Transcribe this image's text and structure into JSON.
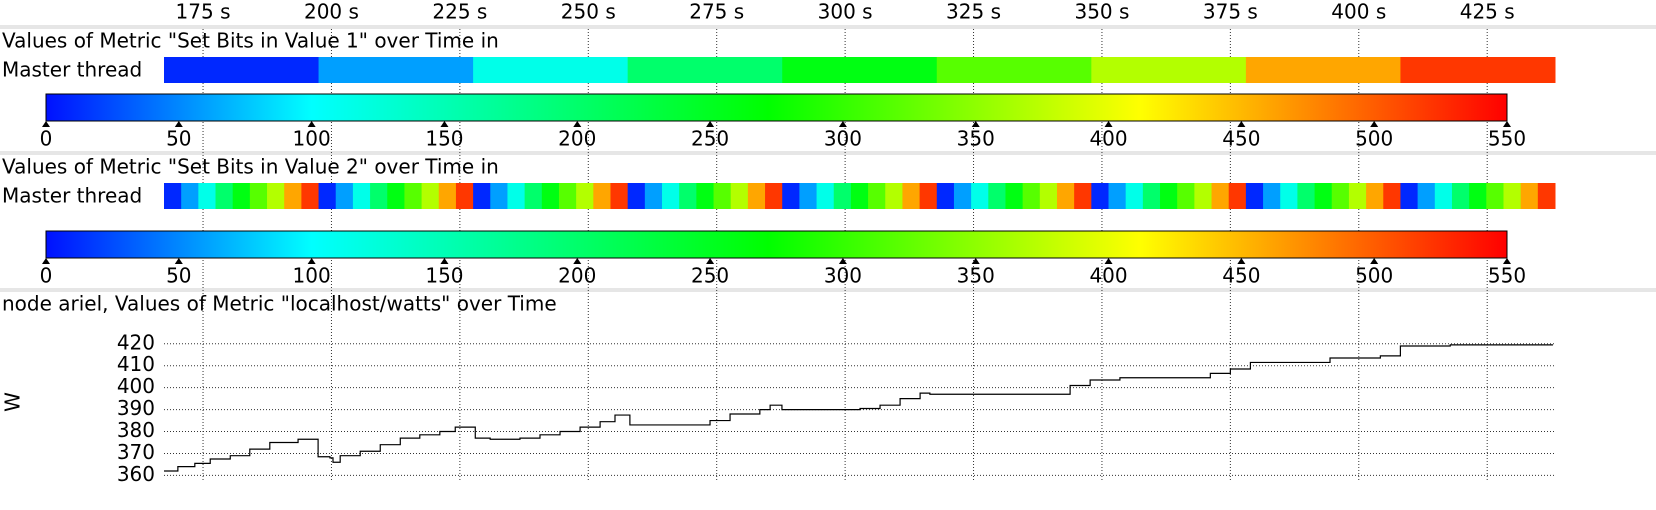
{
  "time_axis": {
    "xlim": [
      167.4,
      438.2
    ],
    "xticks": [
      {
        "value": 175,
        "label": "175 s"
      },
      {
        "value": 200,
        "label": "200 s"
      },
      {
        "value": 225,
        "label": "225 s"
      },
      {
        "value": 250,
        "label": "250 s"
      },
      {
        "value": 275,
        "label": "275 s"
      },
      {
        "value": 300,
        "label": "300 s"
      },
      {
        "value": 325,
        "label": "325 s"
      },
      {
        "value": 350,
        "label": "350 s"
      },
      {
        "value": 375,
        "label": "375 s"
      },
      {
        "value": 400,
        "label": "400 s"
      },
      {
        "value": 425,
        "label": "425 s"
      }
    ]
  },
  "colormap": [
    {
      "value": 0,
      "color": "#0010ff"
    },
    {
      "value": 100,
      "color": "#00ffff"
    },
    {
      "value": 272,
      "color": "#00ff00"
    },
    {
      "value": 412,
      "color": "#ffff00"
    },
    {
      "value": 550,
      "color": "#ff0000"
    }
  ],
  "timelines": [
    {
      "title": "Values of Metric \"Set Bits in Value 1\" over Time in",
      "row_label": "Master thread",
      "values": [
        10,
        60,
        115,
        200,
        260,
        320,
        370,
        460,
        520
      ],
      "scale": {
        "lim": [
          0,
          550
        ],
        "ticks": [
          0,
          50,
          100,
          150,
          200,
          250,
          300,
          350,
          400,
          450,
          500,
          550
        ]
      }
    },
    {
      "title": "Values of Metric \"Set Bits in Value 2\" over Time in",
      "row_label": "Master thread",
      "values": [
        10,
        60,
        115,
        200,
        260,
        320,
        370,
        460,
        520,
        10,
        60,
        115,
        200,
        260,
        320,
        370,
        460,
        520,
        10,
        60,
        115,
        200,
        260,
        320,
        370,
        460,
        520,
        10,
        60,
        115,
        200,
        260,
        320,
        370,
        460,
        520,
        10,
        60,
        115,
        200,
        260,
        320,
        370,
        460,
        520,
        10,
        60,
        115,
        200,
        260,
        320,
        370,
        460,
        520,
        10,
        60,
        115,
        200,
        260,
        320,
        370,
        460,
        520,
        10,
        60,
        115,
        200,
        260,
        320,
        370,
        460,
        520,
        10,
        60,
        115,
        200,
        260,
        320,
        370,
        460,
        520
      ],
      "scale": {
        "lim": [
          0,
          550
        ],
        "ticks": [
          0,
          50,
          100,
          150,
          200,
          250,
          300,
          350,
          400,
          450,
          500,
          550
        ]
      }
    }
  ],
  "line_chart": {
    "type": "line",
    "title": "node ariel, Values of Metric \"localhost/watts\" over Time",
    "ylabel": "W",
    "color": "#000000",
    "grid": true,
    "x": [
      167.4,
      170.1,
      173.4,
      176.4,
      180.3,
      184.1,
      188.0,
      193.5,
      196.2,
      197.4,
      199.7,
      200.3,
      201.7,
      205.6,
      209.5,
      213.4,
      217.2,
      221.1,
      224.1,
      226.6,
      228.0,
      230.9,
      236.7,
      240.6,
      244.5,
      248.4,
      252.3,
      255.2,
      257.2,
      258.1,
      264.0,
      269.8,
      273.7,
      277.6,
      283.4,
      285.4,
      286.9,
      287.7,
      297.1,
      302.9,
      306.8,
      310.7,
      314.6,
      316.5,
      320.4,
      330.2,
      337.9,
      343.8,
      347.7,
      353.5,
      365.2,
      371.1,
      375.0,
      378.9,
      386.6,
      394.4,
      404.2,
      408.1,
      417.8,
      437.8
    ],
    "values": [
      362,
      364,
      365.5,
      367.5,
      369,
      372,
      375,
      376.5,
      376.5,
      368.5,
      368,
      366,
      369,
      371,
      374,
      377,
      378.5,
      380,
      382,
      382,
      377,
      376.5,
      377,
      378.5,
      380,
      382,
      384.5,
      387.5,
      387.5,
      383,
      383,
      383,
      385,
      388,
      390,
      392,
      392,
      390,
      390,
      390.5,
      392,
      395,
      397.5,
      397,
      397,
      397,
      397,
      401,
      403.5,
      404.5,
      404.5,
      406.5,
      408.5,
      411.5,
      411.5,
      413.5,
      414.5,
      419,
      419.5,
      419.5
    ],
    "ylim": [
      357,
      424
    ],
    "yticks": [
      360,
      370,
      380,
      390,
      400,
      410,
      420
    ]
  }
}
